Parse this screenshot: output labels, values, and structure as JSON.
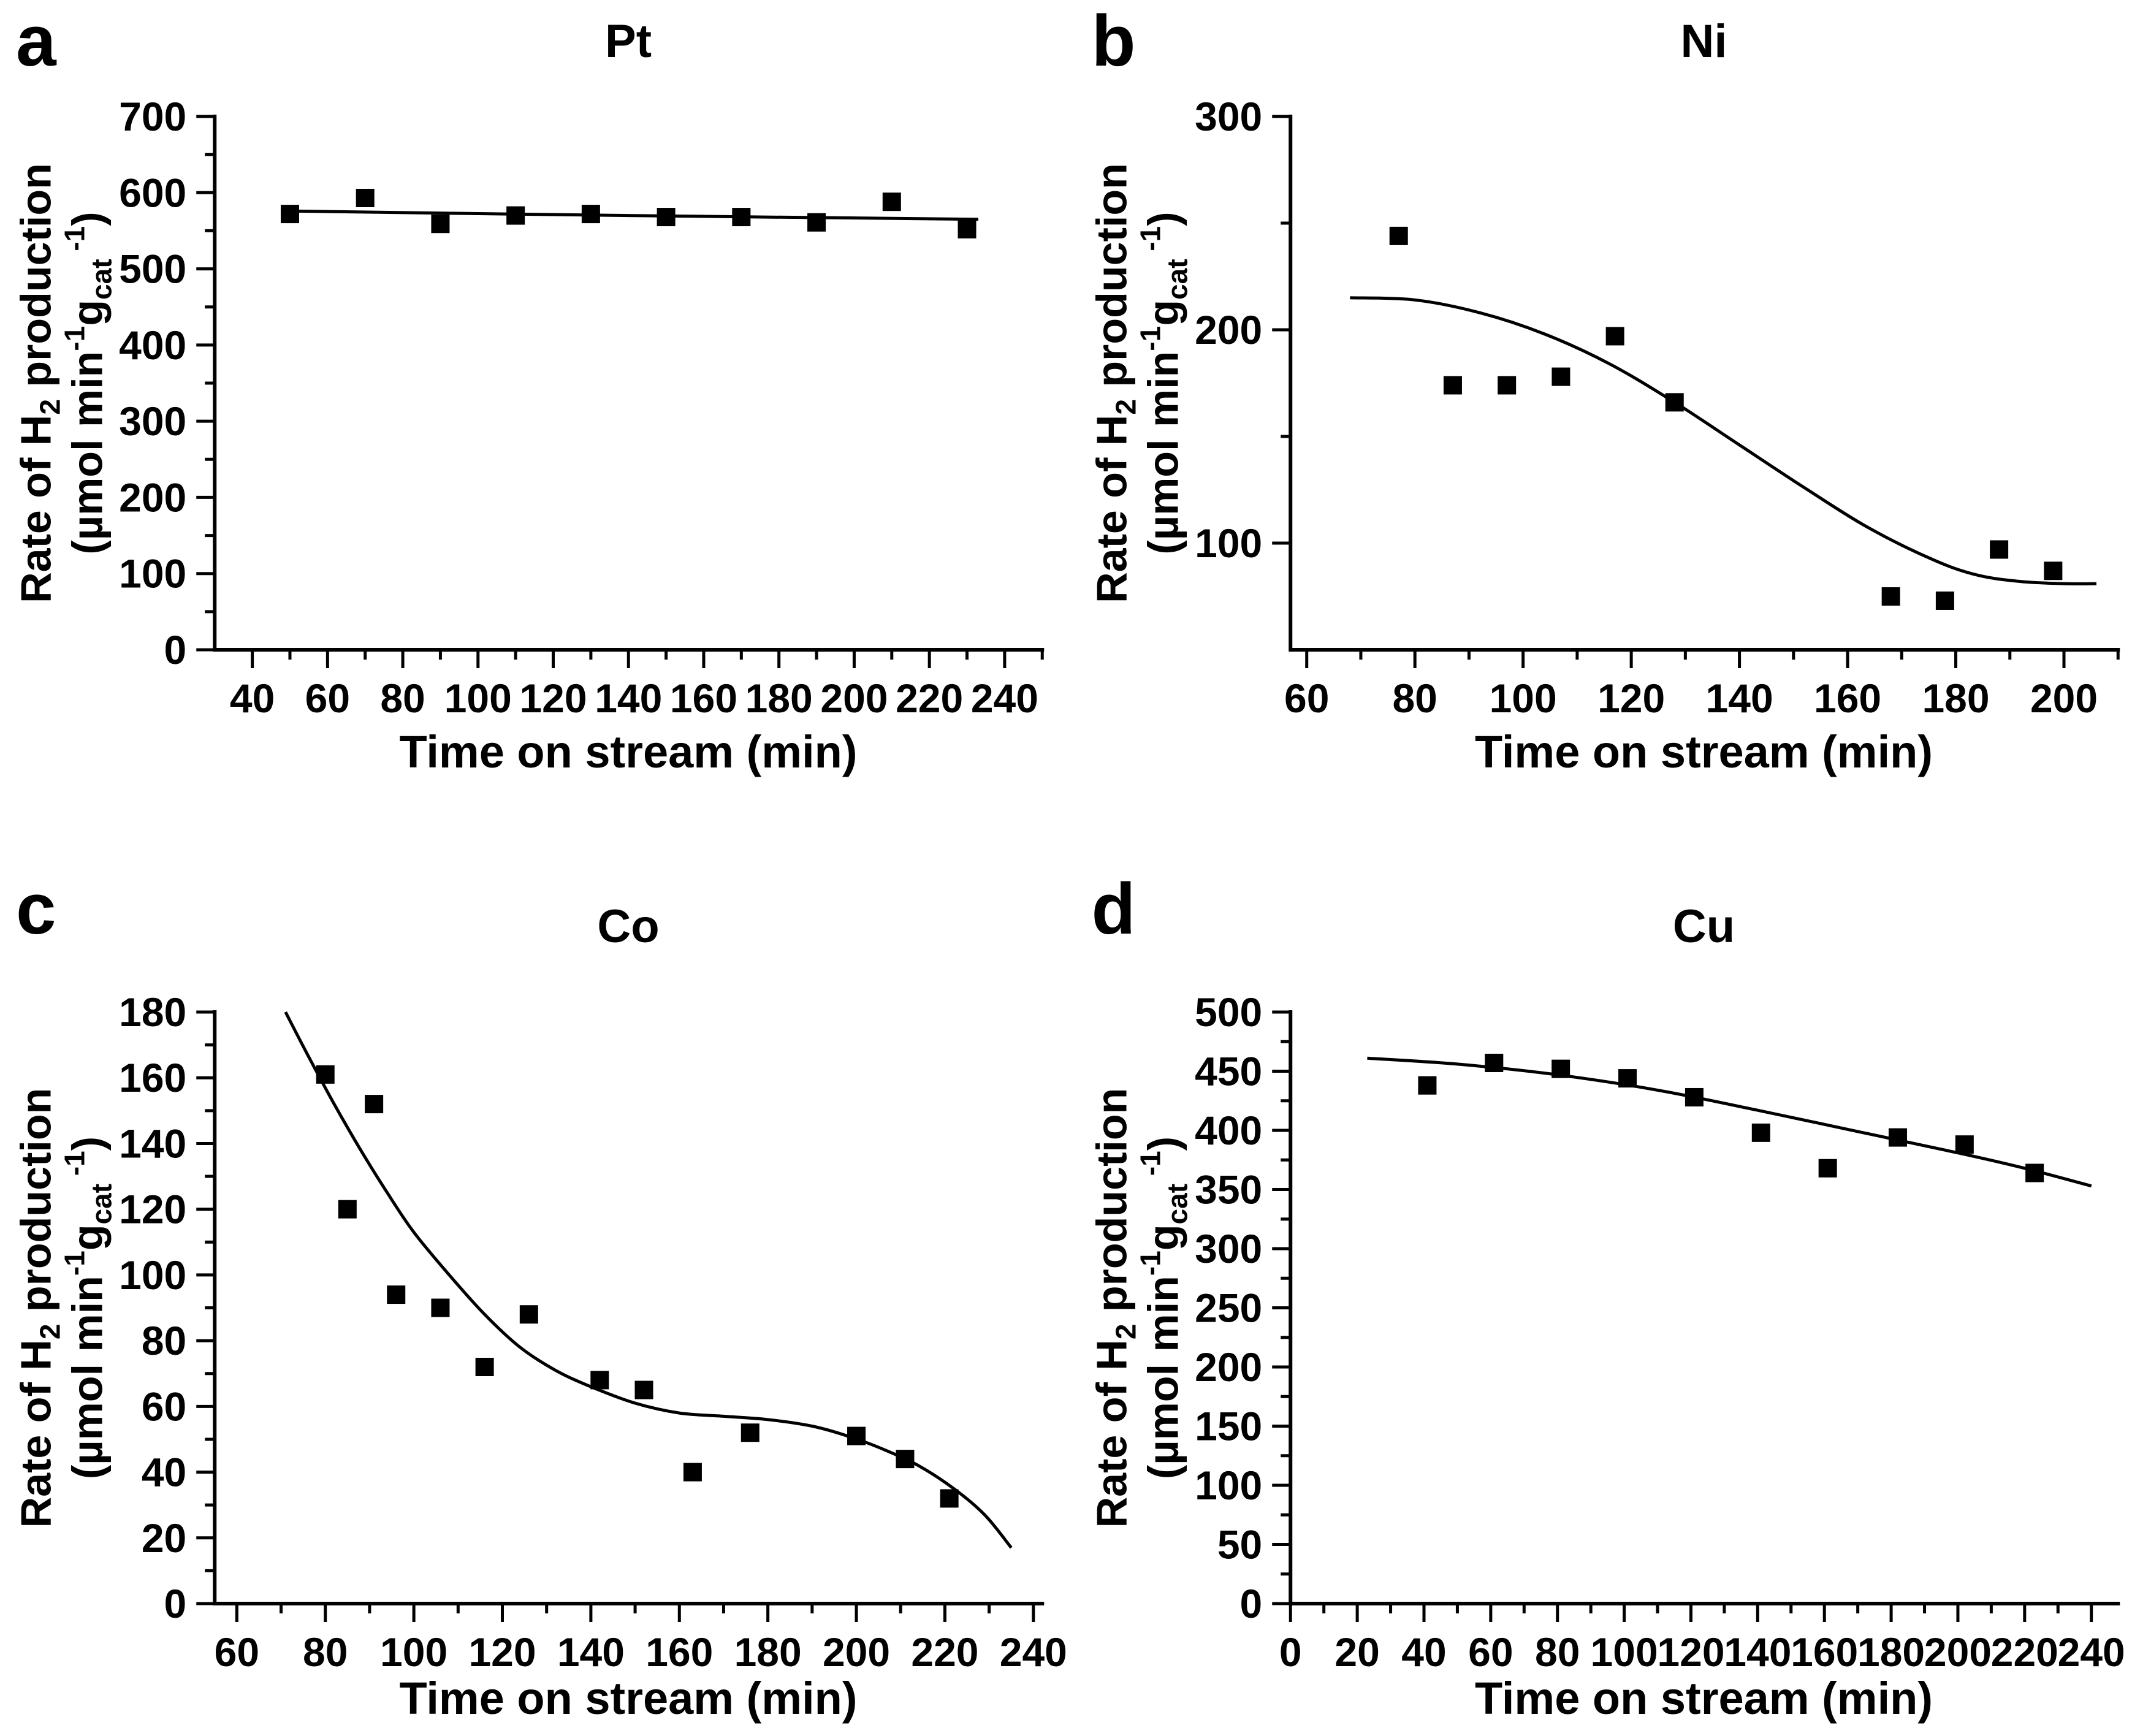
{
  "chart_data": [
    {
      "type": "scatter",
      "panel_letter": "a",
      "title": "Pt",
      "xlabel": "Time on stream (min)",
      "ylabel_lines": [
        "Rate of H_{2} production",
        "(µmol min^{-1}g_{cat}^{ -1})"
      ],
      "marker": "filled-square",
      "color": "#000000",
      "grid": false,
      "xlim": [
        30,
        250
      ],
      "ylim": [
        0,
        700
      ],
      "xticks": {
        "labeled_min": 40,
        "labeled_max": 240,
        "labeled_step": 20,
        "minor_step": 10
      },
      "yticks": {
        "labeled_min": 0,
        "labeled_max": 700,
        "labeled_step": 100,
        "minor_step": 50
      },
      "points": {
        "x": [
          50,
          70,
          90,
          110,
          130,
          150,
          170,
          190,
          210,
          230
        ],
        "y": [
          572,
          593,
          559,
          570,
          572,
          568,
          568,
          561,
          588,
          552
        ]
      },
      "fit_curve": {
        "x": [
          48,
          140,
          233
        ],
        "y": [
          576,
          570,
          565
        ]
      }
    },
    {
      "type": "scatter",
      "panel_letter": "b",
      "title": "Ni",
      "xlabel": "Time on stream (min)",
      "ylabel_lines": [
        "Rate of H_{2} production",
        "(µmol min^{-1}g_{cat}^{ -1})"
      ],
      "marker": "filled-square",
      "color": "#000000",
      "grid": false,
      "xlim": [
        57,
        210
      ],
      "ylim": [
        50,
        300
      ],
      "xticks": {
        "labeled_min": 60,
        "labeled_max": 200,
        "labeled_step": 20,
        "minor_step": 10
      },
      "yticks": {
        "labeled_min": 100,
        "labeled_max": 300,
        "labeled_step": 100,
        "minor_step": 50
      },
      "points": {
        "x": [
          77,
          87,
          97,
          107,
          117,
          128,
          168,
          178,
          188,
          198
        ],
        "y": [
          244,
          174,
          174,
          178,
          197,
          166,
          75,
          73,
          97,
          87
        ]
      },
      "fit_curve": {
        "x": [
          68,
          80,
          92,
          104,
          116,
          128,
          140,
          152,
          164,
          176,
          184,
          192,
          200,
          206
        ],
        "y": [
          215,
          214,
          208,
          198,
          184,
          166,
          146,
          126,
          107,
          92,
          85,
          82,
          81,
          81
        ]
      }
    },
    {
      "type": "scatter",
      "panel_letter": "c",
      "title": "Co",
      "xlabel": "Time on stream (min)",
      "ylabel_lines": [
        "Rate of H_{2} production",
        "(µmol min^{-1}g_{cat}^{ -1})"
      ],
      "marker": "filled-square",
      "color": "#000000",
      "grid": false,
      "xlim": [
        55,
        242
      ],
      "ylim": [
        0,
        180
      ],
      "xticks": {
        "labeled_min": 60,
        "labeled_max": 240,
        "labeled_step": 20,
        "minor_step": 10
      },
      "yticks": {
        "labeled_min": 0,
        "labeled_max": 180,
        "labeled_step": 20,
        "minor_step": 10
      },
      "points": {
        "x": [
          80,
          85,
          91,
          96,
          106,
          116,
          126,
          142,
          152,
          163,
          176,
          200,
          211,
          221
        ],
        "y": [
          161,
          120,
          152,
          94,
          90,
          72,
          88,
          68,
          65,
          40,
          52,
          51,
          44,
          32
        ]
      },
      "fit_curve": {
        "x": [
          71,
          76,
          82,
          88,
          94,
          100,
          108,
          116,
          124,
          132,
          140,
          150,
          160,
          170,
          180,
          190,
          198,
          206,
          214,
          222,
          229,
          235
        ],
        "y": [
          180,
          167,
          152,
          138,
          125,
          113,
          100,
          88,
          78,
          71,
          66,
          61,
          58,
          57,
          56,
          54,
          51,
          47,
          42,
          35,
          27,
          17
        ]
      }
    },
    {
      "type": "scatter",
      "panel_letter": "d",
      "title": "Cu",
      "xlabel": "Time on stream (min)",
      "ylabel_lines": [
        "Rate of H_{2} production",
        "(µmol min^{-1}g_{cat}^{ -1})"
      ],
      "marker": "filled-square",
      "color": "#000000",
      "grid": false,
      "xlim": [
        0,
        248
      ],
      "ylim": [
        0,
        500
      ],
      "xticks": {
        "labeled_min": 0,
        "labeled_max": 240,
        "labeled_step": 20,
        "minor_step": 10
      },
      "yticks": {
        "labeled_min": 0,
        "labeled_max": 500,
        "labeled_step": 50,
        "minor_step": 25
      },
      "points": {
        "x": [
          41,
          61,
          81,
          101,
          121,
          141,
          161,
          182,
          202,
          223
        ],
        "y": [
          438,
          457,
          452,
          444,
          428,
          398,
          368,
          394,
          388,
          364
        ]
      },
      "fit_curve": {
        "x": [
          23,
          50,
          80,
          110,
          140,
          170,
          200,
          220,
          240
        ],
        "y": [
          461,
          456,
          447,
          434,
          417,
          399,
          381,
          368,
          353
        ]
      }
    }
  ]
}
